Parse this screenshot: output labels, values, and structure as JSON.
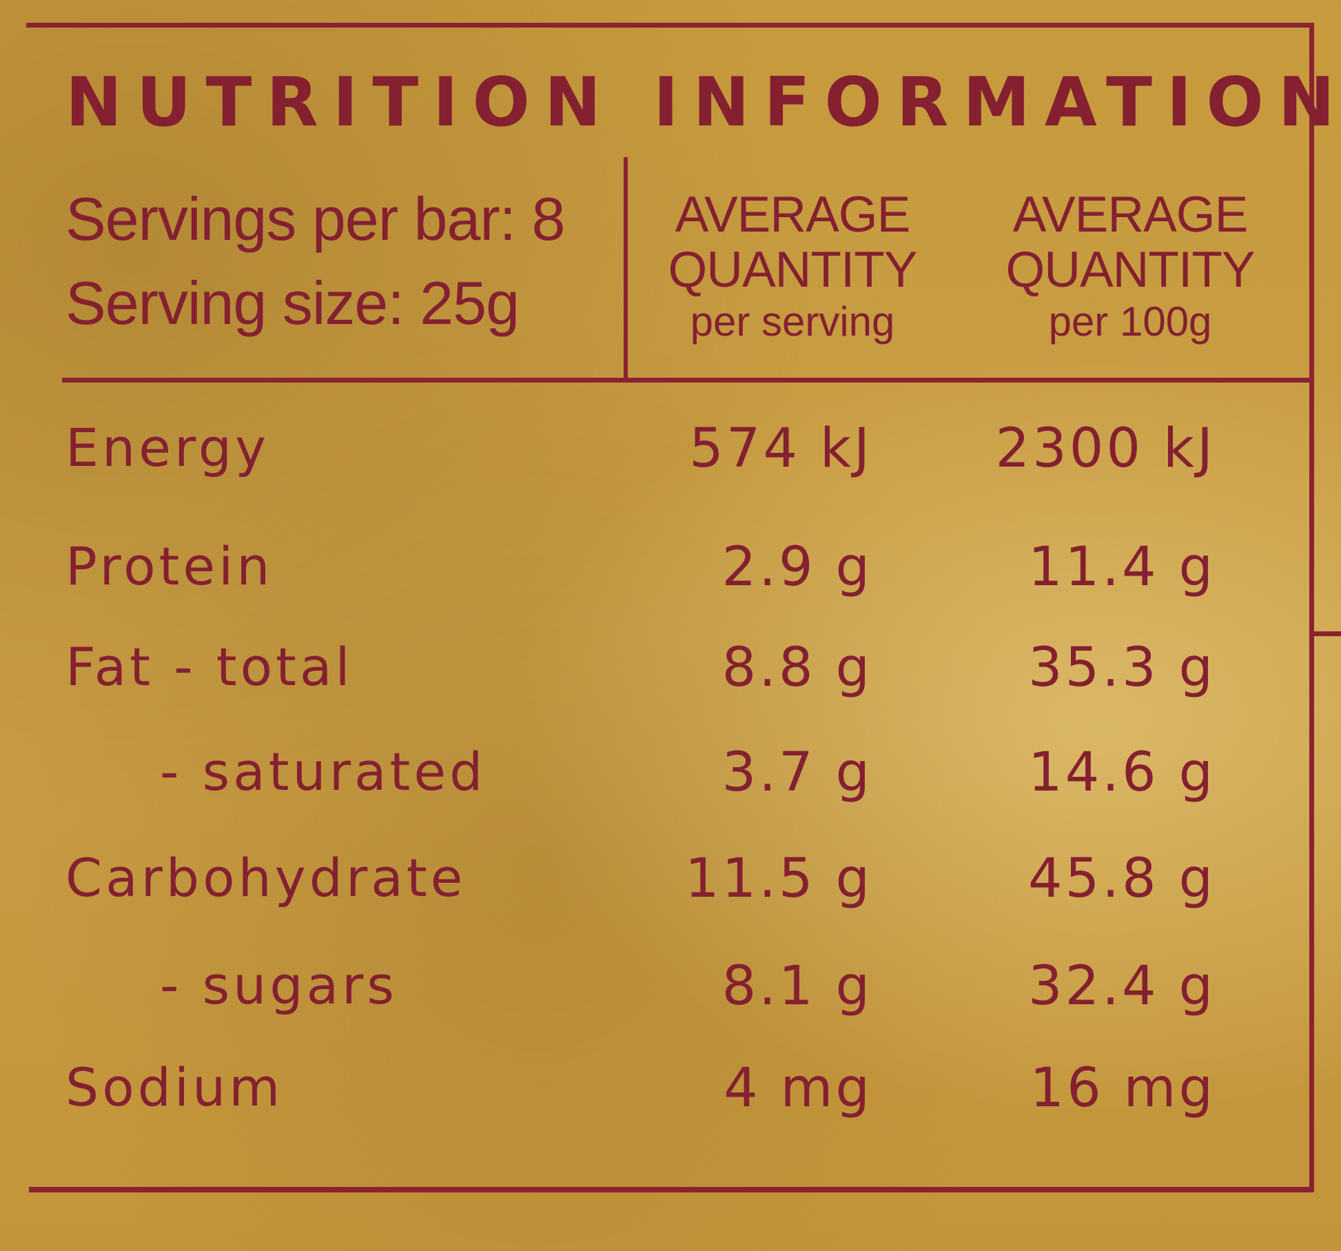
{
  "panel": {
    "title": "NUTRITION INFORMATION",
    "servings_per_bar": "Servings per bar: 8",
    "serving_size": "Serving size: 25g"
  },
  "columns": [
    {
      "heading": "AVERAGE",
      "heading2": "QUANTITY",
      "sub": "per serving"
    },
    {
      "heading": "AVERAGE",
      "heading2": "QUANTITY",
      "sub": "per 100g"
    }
  ],
  "rows": [
    {
      "label": "Energy",
      "per_serving": "574 kJ",
      "per_100g": "2300 kJ",
      "indent": false
    },
    {
      "label": "Protein",
      "per_serving": "2.9 g",
      "per_100g": "11.4 g",
      "indent": false
    },
    {
      "label": "Fat - total",
      "per_serving": "8.8 g",
      "per_100g": "35.3 g",
      "indent": false
    },
    {
      "label": "- saturated",
      "per_serving": "3.7 g",
      "per_100g": "14.6 g",
      "indent": true
    },
    {
      "label": "Carbohydrate",
      "per_serving": "11.5 g",
      "per_100g": "45.8 g",
      "indent": false
    },
    {
      "label": "- sugars",
      "per_serving": "8.1 g",
      "per_100g": "32.4 g",
      "indent": true
    },
    {
      "label": "Sodium",
      "per_serving": "4 mg",
      "per_100g": "16 mg",
      "indent": false
    }
  ],
  "colors": {
    "background": "#c69a3e",
    "ink": "#842030"
  }
}
